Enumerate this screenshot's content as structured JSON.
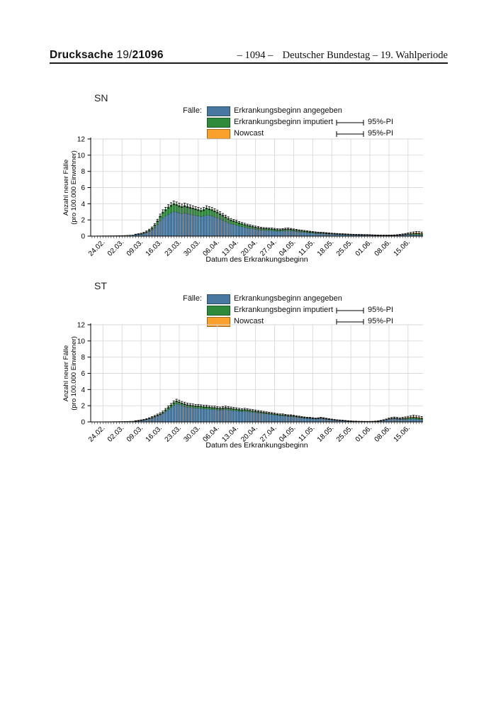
{
  "header": {
    "doc_label": "Drucksache",
    "doc_number_prefix": " 19/",
    "doc_number": "21096",
    "page_number": "– 1094 –",
    "right_title": "Deutscher Bundestag – 19. Wahlperiode"
  },
  "legend": {
    "cases_label": "Fälle:",
    "items": [
      {
        "label": "Erkrankungsbeginn angegeben",
        "color": "#4878a0"
      },
      {
        "label": "Erkrankungsbeginn imputiert",
        "color": "#2f8b3b",
        "pi_label": "95%-PI"
      },
      {
        "label": "Nowcast",
        "color": "#f9a12c",
        "pi_label": "95%-PI"
      }
    ]
  },
  "axes": {
    "ylabel_line1": "Anzahl neuer Fälle",
    "ylabel_line2": "(pro 100.000 Einwohner)",
    "xlabel": "Datum des Erkrankungsbeginn",
    "ylim": [
      0,
      12
    ],
    "yticks": [
      0,
      2,
      4,
      6,
      8,
      10,
      12
    ],
    "grid": true,
    "xtick_labels": [
      "24.02.",
      "02.03.",
      "09.03.",
      "16.03.",
      "23.03.",
      "30.03.",
      "06.04.",
      "13.04.",
      "20.04.",
      "27.04.",
      "04.05.",
      "11.05.",
      "18.05.",
      "25.05.",
      "01.06.",
      "08.06.",
      "15.06."
    ],
    "first_tick_day_index": 4,
    "tick_every_days": 7
  },
  "colors": {
    "grid": "#d9d9d9",
    "axis": "#000000",
    "bar_outline": "rgba(0,0,0,0.5)",
    "whisker": "#000000"
  },
  "chart_data": [
    {
      "type": "bar",
      "stacked": true,
      "title": "SN",
      "legend_position": "top",
      "series": [
        {
          "name": "Erkrankungsbeginn angegeben",
          "color": "#4878a0",
          "values": [
            0.02,
            0.02,
            0.03,
            0.03,
            0.04,
            0.04,
            0.04,
            0.04,
            0.04,
            0.05,
            0.06,
            0.07,
            0.07,
            0.09,
            0.1,
            0.12,
            0.15,
            0.19,
            0.22,
            0.3,
            0.41,
            0.56,
            0.75,
            1.05,
            1.42,
            1.87,
            2.25,
            2.47,
            2.7,
            2.89,
            3.04,
            2.96,
            2.85,
            2.77,
            2.85,
            2.77,
            2.7,
            2.62,
            2.55,
            2.47,
            2.4,
            2.47,
            2.62,
            2.55,
            2.47,
            2.36,
            2.25,
            2.1,
            1.95,
            1.8,
            1.65,
            1.5,
            1.42,
            1.35,
            1.24,
            1.16,
            1.09,
            1.01,
            0.96,
            0.9,
            0.84,
            0.79,
            0.75,
            0.72,
            0.71,
            0.69,
            0.67,
            0.64,
            0.61,
            0.6,
            0.63,
            0.66,
            0.67,
            0.64,
            0.6,
            0.56,
            0.52,
            0.49,
            0.46,
            0.43,
            0.4,
            0.37,
            0.34,
            0.33,
            0.31,
            0.3,
            0.28,
            0.26,
            0.24,
            0.22,
            0.21,
            0.19,
            0.19,
            0.17,
            0.16,
            0.15,
            0.14,
            0.13,
            0.13,
            0.12,
            0.11,
            0.11,
            0.1,
            0.1,
            0.09,
            0.08,
            0.07,
            0.07,
            0.07,
            0.07,
            0.07,
            0.08,
            0.09,
            0.11,
            0.14,
            0.17,
            0.2,
            0.16,
            0.17,
            0.17,
            0.16,
            0.14
          ]
        },
        {
          "name": "Erkrankungsbeginn imputiert",
          "color": "#2f8b3b",
          "values": [
            0.01,
            0.01,
            0.01,
            0.01,
            0.01,
            0.01,
            0.01,
            0.02,
            0.02,
            0.02,
            0.02,
            0.02,
            0.03,
            0.03,
            0.04,
            0.04,
            0.05,
            0.06,
            0.08,
            0.1,
            0.14,
            0.19,
            0.25,
            0.35,
            0.48,
            0.63,
            0.75,
            0.83,
            0.9,
            0.96,
            1.01,
            0.99,
            0.95,
            0.93,
            0.95,
            0.93,
            0.9,
            0.88,
            0.85,
            0.83,
            0.8,
            0.83,
            0.88,
            0.85,
            0.83,
            0.79,
            0.75,
            0.7,
            0.65,
            0.6,
            0.55,
            0.5,
            0.48,
            0.45,
            0.41,
            0.39,
            0.36,
            0.34,
            0.32,
            0.3,
            0.28,
            0.27,
            0.25,
            0.24,
            0.24,
            0.23,
            0.23,
            0.22,
            0.21,
            0.2,
            0.21,
            0.22,
            0.23,
            0.22,
            0.2,
            0.19,
            0.18,
            0.17,
            0.16,
            0.15,
            0.14,
            0.13,
            0.12,
            0.11,
            0.11,
            0.1,
            0.09,
            0.09,
            0.08,
            0.08,
            0.07,
            0.07,
            0.06,
            0.06,
            0.06,
            0.05,
            0.05,
            0.05,
            0.04,
            0.04,
            0.04,
            0.04,
            0.04,
            0.03,
            0.03,
            0.03,
            0.03,
            0.03,
            0.03,
            0.03,
            0.03,
            0.03,
            0.04,
            0.05,
            0.06,
            0.08,
            0.1,
            0.1,
            0.11,
            0.12,
            0.11,
            0.1
          ]
        },
        {
          "name": "Nowcast",
          "color": "#f9a12c",
          "tail_start_index": 117,
          "values_tail": [
            0.08,
            0.1,
            0.13,
            0.13,
            0.12
          ]
        }
      ],
      "pi_upper_extension": [
        0,
        0,
        0,
        0,
        0,
        0,
        0,
        0,
        0,
        0,
        0,
        0,
        0,
        0,
        0,
        0,
        0.04,
        0.05,
        0.06,
        0.07,
        0.09,
        0.11,
        0.13,
        0.15,
        0.18,
        0.22,
        0.25,
        0.26,
        0.28,
        0.28,
        0.28,
        0.27,
        0.27,
        0.26,
        0.27,
        0.26,
        0.26,
        0.25,
        0.25,
        0.24,
        0.24,
        0.24,
        0.25,
        0.24,
        0.24,
        0.23,
        0.22,
        0.21,
        0.2,
        0.19,
        0.18,
        0.17,
        0.16,
        0.16,
        0.15,
        0.14,
        0.14,
        0.13,
        0.13,
        0.12,
        0.12,
        0.11,
        0.11,
        0.1,
        0.1,
        0.1,
        0.1,
        0.1,
        0.09,
        0.09,
        0.09,
        0.1,
        0.1,
        0.09,
        0.09,
        0.09,
        0.08,
        0.08,
        0.08,
        0.07,
        0.07,
        0.07,
        0.07,
        0.06,
        0.06,
        0.06,
        0.06,
        0.06,
        0.05,
        0.05,
        0.05,
        0.05,
        0.05,
        0.05,
        0.04,
        0.04,
        0.04,
        0.04,
        0.04,
        0.04,
        0.04,
        0.04,
        0.04,
        0.03,
        0.03,
        0.03,
        0.03,
        0.03,
        0.03,
        0.03,
        0.04,
        0.04,
        0.05,
        0.06,
        0.07,
        0.08,
        0.1,
        0.12,
        0.14,
        0.16,
        0.16,
        0.15
      ]
    },
    {
      "type": "bar",
      "stacked": true,
      "title": "ST",
      "legend_position": "top",
      "series": [
        {
          "name": "Erkrankungsbeginn angegeben",
          "color": "#4878a0",
          "values": [
            0.02,
            0.02,
            0.03,
            0.03,
            0.02,
            0.03,
            0.03,
            0.03,
            0.04,
            0.04,
            0.05,
            0.05,
            0.06,
            0.07,
            0.08,
            0.08,
            0.1,
            0.13,
            0.17,
            0.22,
            0.29,
            0.37,
            0.48,
            0.59,
            0.72,
            0.85,
            1.02,
            1.27,
            1.53,
            1.78,
            2.04,
            2.21,
            2.12,
            2.0,
            1.91,
            1.83,
            1.78,
            1.74,
            1.7,
            1.7,
            1.66,
            1.61,
            1.61,
            1.57,
            1.53,
            1.53,
            1.49,
            1.44,
            1.49,
            1.53,
            1.49,
            1.44,
            1.4,
            1.36,
            1.32,
            1.27,
            1.32,
            1.27,
            1.23,
            1.19,
            1.15,
            1.1,
            1.06,
            1.02,
            0.98,
            0.93,
            0.89,
            0.85,
            0.81,
            0.76,
            0.76,
            0.72,
            0.68,
            0.68,
            0.64,
            0.59,
            0.55,
            0.51,
            0.47,
            0.44,
            0.42,
            0.39,
            0.36,
            0.38,
            0.42,
            0.39,
            0.34,
            0.3,
            0.25,
            0.22,
            0.19,
            0.17,
            0.15,
            0.13,
            0.1,
            0.08,
            0.07,
            0.07,
            0.05,
            0.05,
            0.04,
            0.04,
            0.04,
            0.05,
            0.07,
            0.08,
            0.12,
            0.18,
            0.24,
            0.32,
            0.36,
            0.39,
            0.36,
            0.32,
            0.35,
            0.3,
            0.33,
            0.35,
            0.37,
            0.33,
            0.3,
            0.27
          ]
        },
        {
          "name": "Erkrankungsbeginn imputiert",
          "color": "#2f8b3b",
          "values": [
            0,
            0,
            0,
            0,
            0.01,
            0.01,
            0.01,
            0.01,
            0.01,
            0.01,
            0.01,
            0.01,
            0.01,
            0.01,
            0.01,
            0.02,
            0.02,
            0.02,
            0.03,
            0.04,
            0.05,
            0.07,
            0.08,
            0.11,
            0.13,
            0.15,
            0.18,
            0.23,
            0.27,
            0.32,
            0.36,
            0.39,
            0.38,
            0.35,
            0.34,
            0.32,
            0.32,
            0.31,
            0.3,
            0.3,
            0.29,
            0.29,
            0.29,
            0.28,
            0.27,
            0.27,
            0.26,
            0.26,
            0.26,
            0.27,
            0.26,
            0.26,
            0.25,
            0.24,
            0.23,
            0.23,
            0.23,
            0.23,
            0.22,
            0.21,
            0.2,
            0.2,
            0.19,
            0.18,
            0.17,
            0.17,
            0.16,
            0.15,
            0.14,
            0.14,
            0.14,
            0.13,
            0.12,
            0.12,
            0.11,
            0.11,
            0.1,
            0.09,
            0.08,
            0.08,
            0.08,
            0.07,
            0.06,
            0.07,
            0.08,
            0.07,
            0.06,
            0.05,
            0.05,
            0.04,
            0.03,
            0.03,
            0.03,
            0.02,
            0.02,
            0.02,
            0.01,
            0.01,
            0.01,
            0.01,
            0.01,
            0.01,
            0.01,
            0.01,
            0.01,
            0.02,
            0.03,
            0.04,
            0.06,
            0.08,
            0.1,
            0.11,
            0.1,
            0.1,
            0.11,
            0.12,
            0.14,
            0.15,
            0.16,
            0.15,
            0.14,
            0.13
          ]
        },
        {
          "name": "Nowcast",
          "color": "#f9a12c",
          "tail_start_index": 115,
          "values_tail": [
            0.08,
            0.08,
            0.1,
            0.12,
            0.12,
            0.11,
            0.1
          ]
        }
      ],
      "pi_upper_extension": [
        0,
        0,
        0,
        0,
        0,
        0,
        0,
        0,
        0,
        0,
        0,
        0,
        0,
        0,
        0,
        0,
        0.03,
        0.04,
        0.05,
        0.06,
        0.07,
        0.08,
        0.09,
        0.1,
        0.12,
        0.13,
        0.14,
        0.16,
        0.17,
        0.18,
        0.19,
        0.2,
        0.19,
        0.18,
        0.18,
        0.17,
        0.17,
        0.17,
        0.16,
        0.16,
        0.16,
        0.16,
        0.16,
        0.15,
        0.15,
        0.15,
        0.15,
        0.14,
        0.15,
        0.15,
        0.15,
        0.14,
        0.14,
        0.14,
        0.13,
        0.13,
        0.13,
        0.13,
        0.12,
        0.12,
        0.12,
        0.11,
        0.11,
        0.11,
        0.1,
        0.1,
        0.1,
        0.09,
        0.09,
        0.09,
        0.09,
        0.08,
        0.08,
        0.08,
        0.08,
        0.07,
        0.07,
        0.07,
        0.06,
        0.06,
        0.06,
        0.06,
        0.05,
        0.06,
        0.06,
        0.06,
        0.05,
        0.05,
        0.05,
        0.04,
        0.04,
        0.04,
        0.04,
        0.03,
        0.03,
        0.03,
        0.02,
        0.02,
        0.02,
        0.02,
        0.02,
        0.02,
        0.02,
        0.02,
        0.02,
        0.03,
        0.04,
        0.05,
        0.06,
        0.08,
        0.09,
        0.1,
        0.1,
        0.1,
        0.11,
        0.12,
        0.14,
        0.16,
        0.18,
        0.18,
        0.17,
        0.16
      ]
    }
  ]
}
